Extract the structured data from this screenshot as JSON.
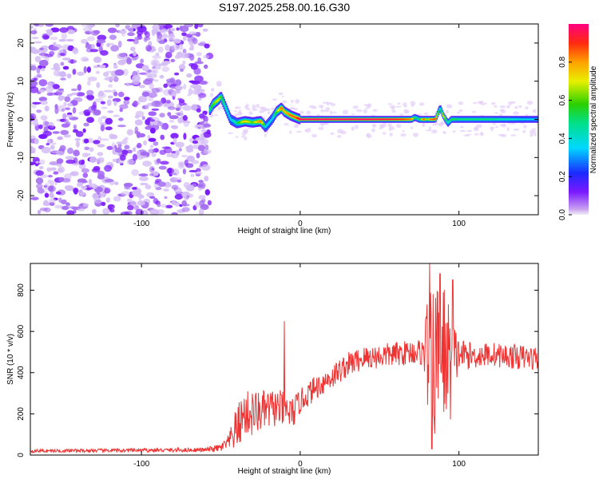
{
  "figure_title": "S197.2025.258.00.16.G30",
  "chart_data": [
    {
      "type": "heatmap",
      "title": "S197.2025.258.00.16.G30",
      "xlabel": "Height of straight line (km)",
      "ylabel": "Frequency (Hz)",
      "xlim": [
        -170,
        150
      ],
      "ylim": [
        -25,
        25
      ],
      "xticks": [
        -100,
        0,
        100
      ],
      "xtick_labels": [
        "-100",
        "0",
        "100"
      ],
      "yticks": [
        -20,
        -10,
        0,
        10,
        20
      ],
      "ytick_labels": [
        "-20",
        "-10",
        "0",
        "10",
        "20"
      ],
      "noise_region_x": [
        -170,
        -57
      ],
      "ridge": {
        "x": [
          -57,
          -55,
          -52,
          -50,
          -48,
          -46,
          -44,
          -40,
          -35,
          -30,
          -25,
          -22,
          -18,
          -15,
          -12,
          -10,
          -6,
          -3,
          0,
          20,
          40,
          60,
          70,
          72,
          75,
          78,
          80,
          82,
          85,
          88,
          90,
          93,
          95,
          100,
          110,
          120,
          130,
          140,
          150
        ],
        "freq": [
          2.5,
          4,
          5,
          6,
          4,
          2,
          0,
          -1,
          -0.5,
          -0.8,
          -0.5,
          -2,
          0,
          2,
          3,
          2,
          1,
          0.5,
          0,
          0,
          0,
          0,
          0,
          0.5,
          0,
          0,
          0,
          0,
          0,
          3,
          1,
          -1,
          0,
          0,
          0,
          0,
          0,
          0,
          0
        ],
        "amp": [
          0.5,
          0.6,
          0.7,
          0.6,
          0.5,
          0.4,
          0.35,
          0.5,
          0.75,
          0.6,
          0.85,
          0.4,
          0.35,
          0.6,
          0.85,
          0.75,
          0.85,
          0.85,
          1.0,
          1.0,
          1.0,
          0.95,
          0.85,
          0.5,
          0.5,
          0.9,
          0.6,
          0.85,
          0.9,
          0.4,
          0.75,
          0.4,
          0.55,
          0.5,
          0.5,
          0.5,
          0.45,
          0.4,
          0.35
        ]
      },
      "colorbar": {
        "label": "Normalized spectral amplitude",
        "range": [
          0,
          1
        ],
        "ticks": [
          0.0,
          0.2,
          0.4,
          0.6,
          0.8
        ],
        "tick_labels": [
          "0.0",
          "0.2",
          "0.4",
          "0.6",
          "0.8"
        ],
        "colormap": "rainbow (violet-blue-cyan-green-yellow-orange-red-magenta)"
      }
    },
    {
      "type": "line",
      "title": "",
      "xlabel": "Height of straight line (km)",
      "ylabel": "SNR (10 * v/v)",
      "xlim": [
        -170,
        150
      ],
      "ylim": [
        0,
        930
      ],
      "xticks": [
        -100,
        0,
        100
      ],
      "xtick_labels": [
        "-100",
        "0",
        "100"
      ],
      "yticks": [
        0,
        200,
        400,
        600,
        800
      ],
      "ytick_labels": [
        "0",
        "200",
        "400",
        "600",
        "800"
      ],
      "series": [
        {
          "name": "SNR",
          "color": "#ee3333",
          "x": [
            -170,
            -60,
            -50,
            -45,
            -40,
            -35,
            -30,
            -25,
            -20,
            -15,
            -10,
            -5,
            0,
            10,
            20,
            30,
            40,
            50,
            60,
            70,
            78,
            80,
            82,
            84,
            86,
            88,
            90,
            92,
            94,
            96,
            98,
            100,
            110,
            120,
            130,
            140,
            150
          ],
          "center": [
            20,
            25,
            35,
            60,
            130,
            200,
            200,
            210,
            220,
            230,
            220,
            200,
            260,
            330,
            380,
            440,
            470,
            480,
            490,
            500,
            500,
            520,
            400,
            420,
            500,
            420,
            480,
            500,
            430,
            480,
            470,
            490,
            480,
            490,
            480,
            475,
            470
          ],
          "amp": [
            8,
            10,
            20,
            40,
            110,
            110,
            120,
            100,
            100,
            90,
            90,
            80,
            60,
            60,
            60,
            60,
            60,
            60,
            60,
            60,
            70,
            300,
            390,
            380,
            380,
            350,
            380,
            320,
            300,
            250,
            150,
            80,
            60,
            60,
            60,
            60,
            60
          ],
          "spikes": [
            {
              "x": -10,
              "y": 650
            },
            {
              "x": 81.5,
              "y": 930
            },
            {
              "x": 83,
              "y": 30
            },
            {
              "x": 88,
              "y": 880
            },
            {
              "x": 96,
              "y": 850
            }
          ]
        }
      ]
    }
  ]
}
